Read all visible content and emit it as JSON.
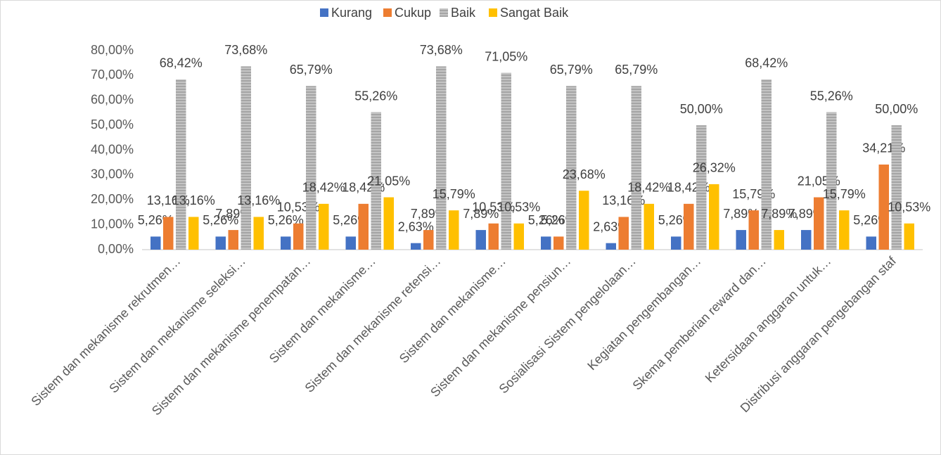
{
  "chart_data": {
    "type": "bar",
    "categories": [
      "Sistem dan mekanisme rekrutmen…",
      "Sistem dan mekanisme seleksi…",
      "Sistem dan mekanisme penempatan…",
      "Sistem dan mekanisme…",
      "Sistem dan mekanisme  retensi…",
      "Sistem dan mekanisme…",
      "Sistem dan mekanisme pensiun…",
      "Sosialisasi Sistem pengelolaan…",
      "Kegiatan pengembangan…",
      "Skema pemberian reward dan…",
      "Ketersidaan anggaran untuk…",
      "Distribusi anggaran pengebangan staf"
    ],
    "series": [
      {
        "name": "Kurang",
        "color": "#4472c4",
        "values": [
          5.26,
          5.26,
          5.26,
          5.26,
          2.63,
          7.89,
          5.26,
          2.63,
          5.26,
          7.89,
          7.89,
          5.26
        ],
        "value_labels": [
          "5,26%",
          "5,26%",
          "5,26%",
          "5,26%",
          "2,63%",
          "7,89%",
          "5,26%",
          "2,63%",
          "5,26%",
          "7,89%",
          "7,89%",
          "5,26%"
        ]
      },
      {
        "name": "Cukup",
        "color": "#ed7d31",
        "values": [
          13.16,
          7.89,
          10.53,
          18.42,
          7.89,
          10.53,
          5.26,
          13.16,
          18.42,
          15.79,
          21.05,
          34.21
        ],
        "value_labels": [
          "13,16%",
          "7,89%",
          "10,53%",
          "18,42%",
          "7,89%",
          "10,53%",
          "5,26%",
          "13,16%",
          "18,42%",
          "15,79%",
          "21,05%",
          "34,21%"
        ]
      },
      {
        "name": "Baik",
        "color": "#a5a5a5",
        "hatch": true,
        "values": [
          68.42,
          73.68,
          65.79,
          55.26,
          73.68,
          71.05,
          65.79,
          65.79,
          50.0,
          68.42,
          55.26,
          50.0
        ],
        "value_labels": [
          "68,42%",
          "73,68%",
          "65,79%",
          "55,26%",
          "73,68%",
          "71,05%",
          "65,79%",
          "65,79%",
          "50,00%",
          "68,42%",
          "55,26%",
          "50,00%"
        ]
      },
      {
        "name": "Sangat Baik",
        "color": "#ffc000",
        "values": [
          13.16,
          13.16,
          18.42,
          21.05,
          15.79,
          10.53,
          23.68,
          18.42,
          26.32,
          7.89,
          15.79,
          10.53
        ],
        "value_labels": [
          "13,16%",
          "13,16%",
          "18,42%",
          "21,05%",
          "15,79%",
          "10,53%",
          "23,68%",
          "18,42%",
          "26,32%",
          "7,89%",
          "15,79%",
          "10,53%"
        ]
      }
    ],
    "ylim": [
      0,
      80
    ],
    "yticks": [
      {
        "value": 0,
        "label": "0,00%"
      },
      {
        "value": 10,
        "label": "10,00%"
      },
      {
        "value": 20,
        "label": "20,00%"
      },
      {
        "value": 30,
        "label": "30,00%"
      },
      {
        "value": 40,
        "label": "40,00%"
      },
      {
        "value": 50,
        "label": "50,00%"
      },
      {
        "value": 60,
        "label": "60,00%"
      },
      {
        "value": 70,
        "label": "70,00%"
      },
      {
        "value": 80,
        "label": "80,00%"
      }
    ],
    "legend": "top"
  }
}
